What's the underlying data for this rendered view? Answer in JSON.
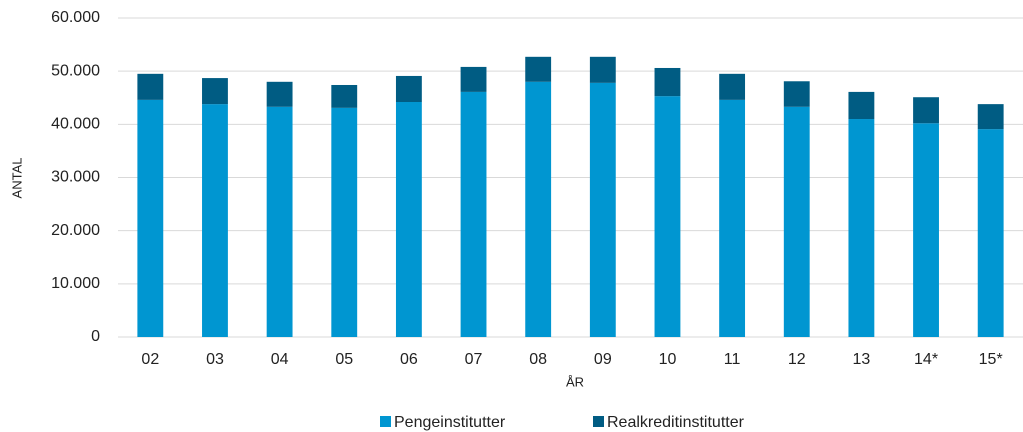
{
  "chart_data": {
    "type": "stacked_bar",
    "x_label": "ÅR",
    "y_label": "ANTAL",
    "categories": [
      "02",
      "03",
      "04",
      "05",
      "06",
      "07",
      "08",
      "09",
      "10",
      "11",
      "12",
      "13",
      "14*",
      "15*"
    ],
    "series": [
      {
        "name": "Pengeinstitutter",
        "color": "#0096d1",
        "values": [
          44600,
          43800,
          43300,
          43100,
          44200,
          46100,
          48000,
          47800,
          45300,
          44600,
          43300,
          41000,
          40200,
          39100
        ]
      },
      {
        "name": "Realkreditinstitutter",
        "color": "#005c83",
        "values": [
          4900,
          4900,
          4700,
          4300,
          4900,
          4700,
          4700,
          4900,
          5300,
          4900,
          4800,
          5100,
          4900,
          4700
        ]
      }
    ],
    "ylim": [
      0,
      60000
    ],
    "yticks": [
      0,
      {
        "value": 10000,
        "label": "10.000"
      },
      {
        "value": 20000,
        "label": "20.000"
      },
      {
        "value": 30000,
        "label": "30.000"
      },
      {
        "value": 40000,
        "label": "40.000"
      },
      {
        "value": 50000,
        "label": "50.000"
      },
      {
        "value": 60000,
        "label": "60.000"
      }
    ],
    "grid": true,
    "legend": "bottom"
  }
}
